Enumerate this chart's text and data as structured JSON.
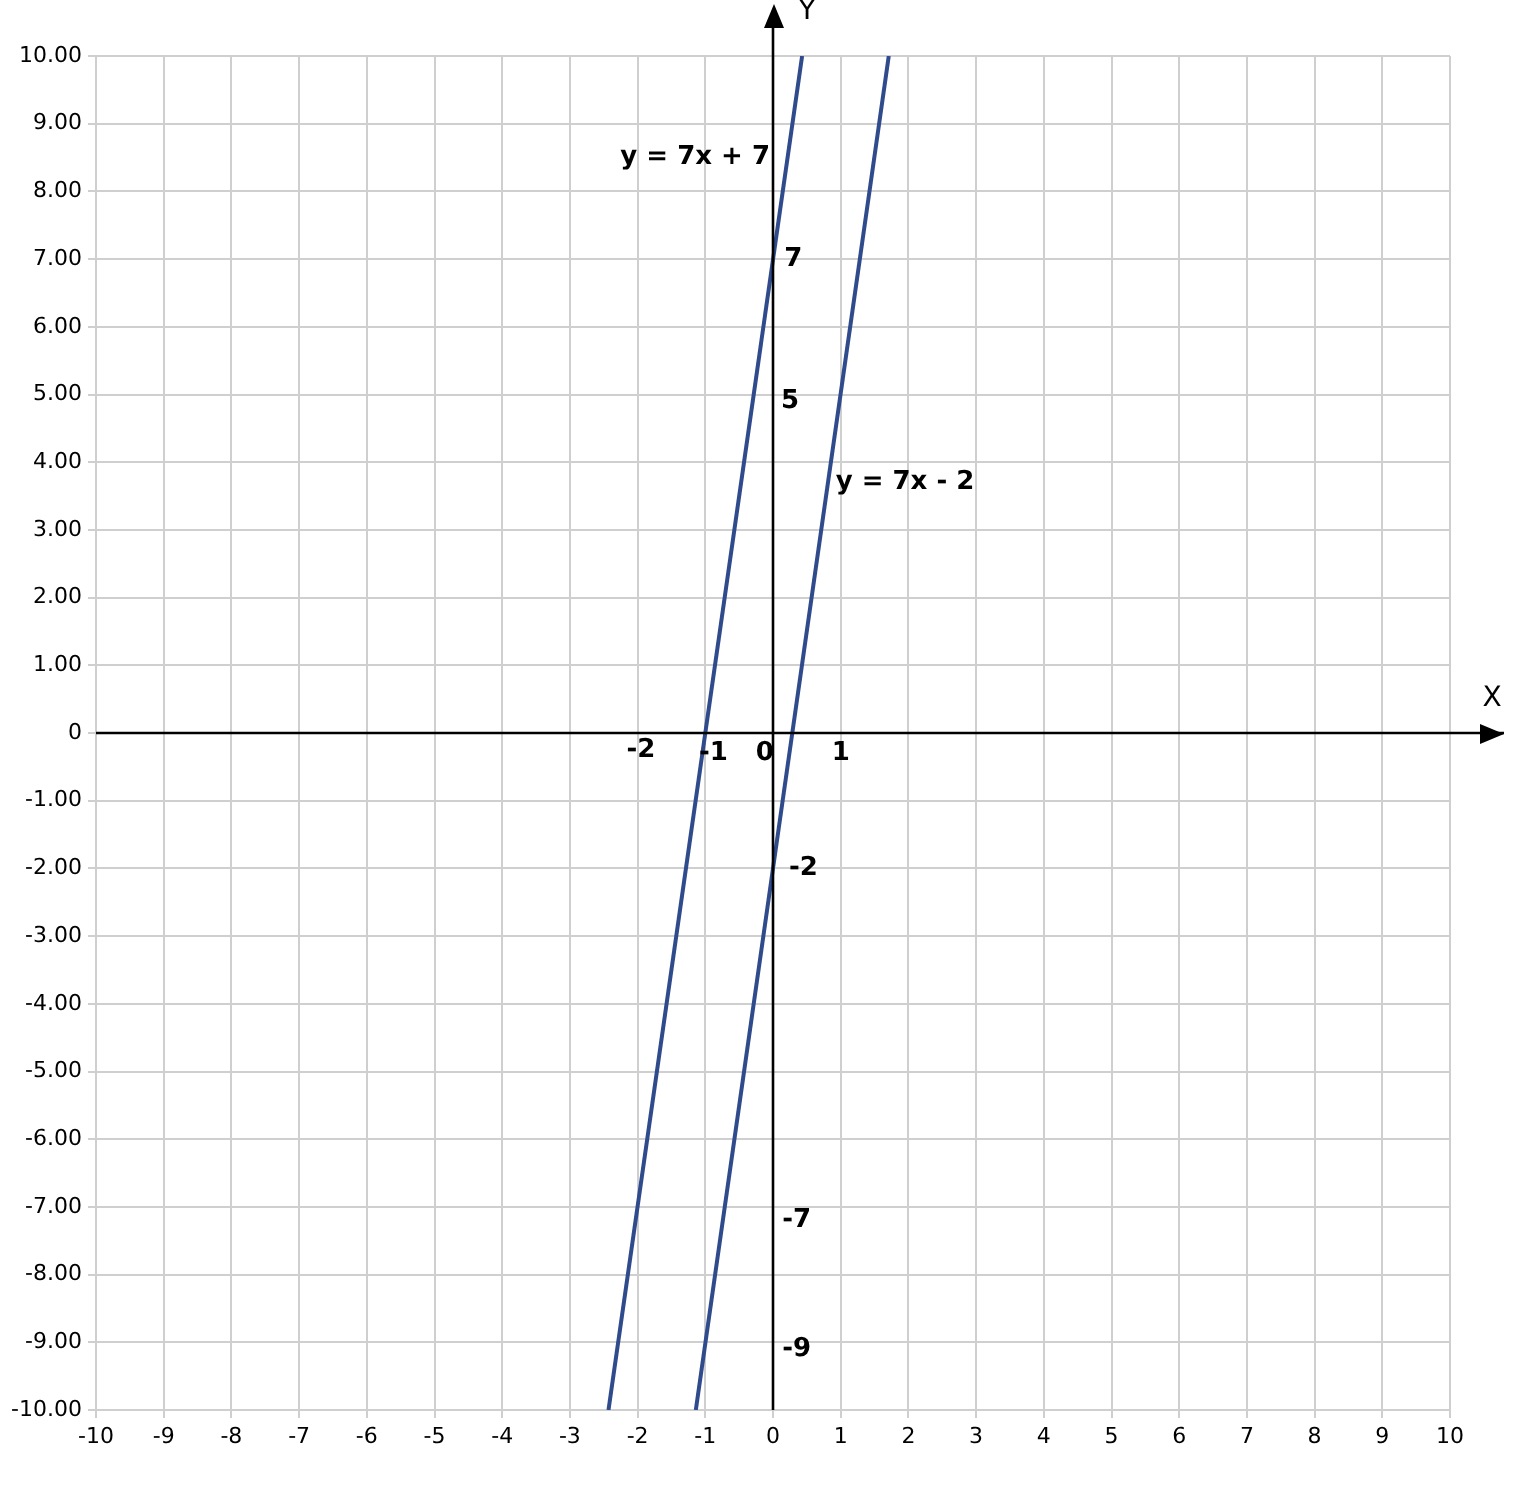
{
  "chart_data": {
    "type": "line",
    "xlabel": "X",
    "ylabel": "Y",
    "series": [
      {
        "color": "#2f4b8c",
        "x": [
          -2.43,
          0.43
        ],
        "values": [
          -10,
          10
        ]
      },
      {
        "color": "#2f4b8c",
        "x": [
          -1.14,
          1.71
        ],
        "values": [
          -10,
          10
        ]
      }
    ],
    "xlim": [
      -10,
      10
    ],
    "xticks": [
      -10,
      -9,
      -8,
      -7,
      -6,
      -5,
      -4,
      -3,
      -2,
      -1,
      0,
      1,
      2,
      3,
      4,
      5,
      6,
      7,
      8,
      9,
      10
    ],
    "ylim": [
      -10,
      10
    ],
    "yticks": [
      {
        "value": -10,
        "label": "-10.00"
      },
      {
        "value": -9,
        "label": "-9.00"
      },
      {
        "value": -8,
        "label": "-8.00"
      },
      {
        "value": -7,
        "label": "-7.00"
      },
      {
        "value": -6,
        "label": "-6.00"
      },
      {
        "value": -5,
        "label": "-5.00"
      },
      {
        "value": -4,
        "label": "-4.00"
      },
      {
        "value": -3,
        "label": "-3.00"
      },
      {
        "value": -2,
        "label": "-2.00"
      },
      {
        "value": -1,
        "label": "-1.00"
      },
      0,
      {
        "value": 1,
        "label": "1.00"
      },
      {
        "value": 2,
        "label": "2.00"
      },
      {
        "value": 3,
        "label": "3.00"
      },
      {
        "value": 4,
        "label": "4.00"
      },
      {
        "value": 5,
        "label": "5.00"
      },
      {
        "value": 6,
        "label": "6.00"
      },
      {
        "value": 7,
        "label": "7.00"
      },
      {
        "value": 8,
        "label": "8.00"
      },
      {
        "value": 9,
        "label": "9.00"
      },
      {
        "value": 10,
        "label": "10.00"
      }
    ],
    "grid": true,
    "legend": false,
    "marker": "none",
    "line_style": "solid",
    "annotations": [
      "y = 7x + 7",
      "y = 7x - 2",
      "-2",
      "-1",
      "0",
      "1",
      "7",
      "5",
      "-2",
      "-7",
      "-9"
    ]
  }
}
